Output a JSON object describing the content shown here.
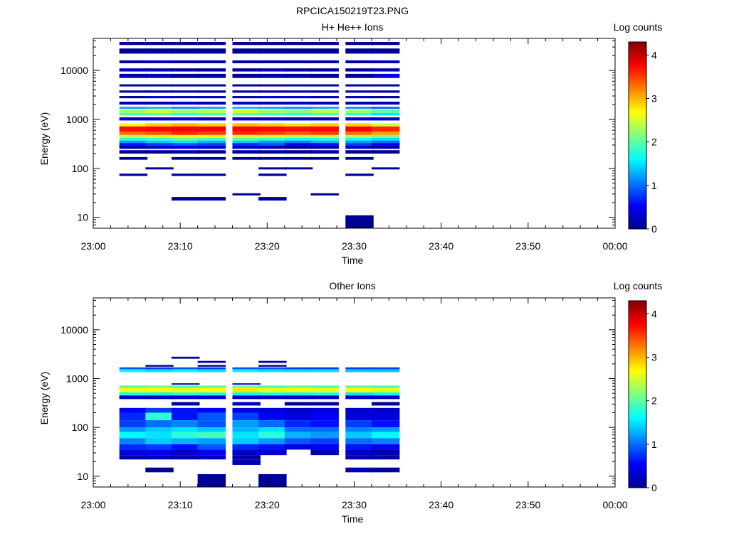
{
  "figure": {
    "title": "RPCICA150219T23.PNG"
  },
  "panels": [
    {
      "id": "top",
      "title": "H+ He++ Ions",
      "colorbar_label": "Log counts"
    },
    {
      "id": "bottom",
      "title": "Other Ions",
      "colorbar_label": "Log counts"
    }
  ],
  "chart_data": [
    {
      "type": "heatmap",
      "title": "H+ He++ Ions",
      "xlabel": "Time",
      "ylabel": "Energy (eV)",
      "x_ticks": [
        "23:00",
        "23:10",
        "23:20",
        "23:30",
        "23:40",
        "23:50",
        "00:00"
      ],
      "x_range": [
        "23:00",
        "00:00"
      ],
      "y_scale": "log",
      "y_range": [
        6,
        45000
      ],
      "y_ticks": [
        10,
        100,
        1000,
        10000
      ],
      "y_tick_labels": [
        "10",
        "100",
        "1000",
        "10000"
      ],
      "colorbar": {
        "label": "Log counts",
        "range": [
          0,
          4.3
        ],
        "ticks": [
          0,
          1,
          2,
          3,
          4
        ],
        "colormap": "jet"
      },
      "time_bins": [
        "23:03",
        "23:06",
        "23:09",
        "23:12",
        "23:16",
        "23:19",
        "23:22",
        "23:25",
        "23:29",
        "23:32"
      ],
      "bin_width_min": 3.2,
      "bands": [
        {
          "lo": 560,
          "hi": 720,
          "values": [
            3.7,
            3.75,
            3.8,
            3.8,
            3.75,
            3.75,
            3.7,
            3.75,
            3.8,
            3.6
          ]
        },
        {
          "lo": 480,
          "hi": 560,
          "values": [
            3.3,
            3.4,
            3.6,
            3.5,
            3.6,
            3.5,
            3.4,
            3.5,
            3.3,
            3.1
          ]
        },
        {
          "lo": 720,
          "hi": 830,
          "values": [
            2.7,
            2.9,
            3.0,
            2.9,
            3.0,
            2.9,
            2.8,
            2.9,
            2.9,
            2.5
          ]
        },
        {
          "lo": 420,
          "hi": 480,
          "values": [
            2.4,
            2.5,
            2.6,
            2.6,
            2.5,
            2.5,
            2.4,
            2.4,
            2.3,
            2.1
          ]
        },
        {
          "lo": 370,
          "hi": 420,
          "values": [
            1.8,
            1.9,
            2.1,
            1.9,
            2.0,
            1.9,
            1.7,
            1.8,
            1.7,
            1.5
          ]
        },
        {
          "lo": 330,
          "hi": 370,
          "values": [
            1.2,
            1.4,
            1.5,
            1.3,
            1.4,
            1.2,
            1.1,
            1.3,
            1.2,
            1.0
          ]
        },
        {
          "lo": 290,
          "hi": 330,
          "values": [
            0.6,
            0.8,
            0.9,
            0.8,
            0.7,
            0.9,
            0.5,
            0.6,
            0.8,
            0.5
          ]
        },
        {
          "lo": 250,
          "hi": 290,
          "values": [
            0.2,
            0.3,
            0.4,
            0.3,
            0.3,
            0.2,
            0.1,
            0.2,
            0.3,
            0.2
          ]
        },
        {
          "lo": 1350,
          "hi": 1600,
          "values": [
            2.3,
            2.5,
            2.3,
            2.4,
            2.5,
            2.3,
            2.2,
            2.4,
            2.3,
            2.0
          ]
        },
        {
          "lo": 1200,
          "hi": 1350,
          "values": [
            1.9,
            2.0,
            1.8,
            1.9,
            2.0,
            1.9,
            1.8,
            1.9,
            1.8,
            1.5
          ]
        },
        {
          "lo": 1650,
          "hi": 1800,
          "values": [
            1.2,
            1.3,
            1.1,
            1.2,
            1.3,
            1.2,
            1.1,
            1.2,
            1.1,
            0.9
          ]
        },
        {
          "lo": 950,
          "hi": 1100,
          "values": [
            0.3,
            0.3,
            0.4,
            0.3,
            0.3,
            0.4,
            0.3,
            0.3,
            0.4,
            0.3
          ]
        },
        {
          "lo": 2000,
          "hi": 2300,
          "values": [
            0.2,
            0.2,
            0.3,
            0.2,
            0.3,
            0.2,
            0.3,
            0.2,
            0.2,
            0.2
          ]
        },
        {
          "lo": 2700,
          "hi": 3000,
          "values": [
            0.1,
            0.3,
            0.2,
            0.2,
            0.2,
            0.3,
            0.3,
            0.2,
            0.2,
            0.1
          ]
        },
        {
          "lo": 3500,
          "hi": 3900,
          "values": [
            0.2,
            0.1,
            0.2,
            0.1,
            0.2,
            0.2,
            0.2,
            0.1,
            0.2,
            0.1
          ]
        },
        {
          "lo": 4700,
          "hi": 5200,
          "values": [
            0.1,
            0.2,
            0.1,
            0.2,
            0.1,
            0.1,
            0.2,
            0.2,
            0.1,
            0.2
          ]
        },
        {
          "lo": 7000,
          "hi": 8500,
          "values": [
            0.2,
            0.3,
            0.1,
            0.2,
            0.1,
            0.2,
            0.2,
            0.1,
            0.1,
            0.4
          ]
        },
        {
          "lo": 9500,
          "hi": 11000,
          "values": [
            0.3,
            0.2,
            0.1,
            0.1,
            0.1,
            0.2,
            0.1,
            0.1,
            0.1,
            0.2
          ]
        },
        {
          "lo": 14000,
          "hi": 16000,
          "values": [
            0.1,
            0.2,
            0.1,
            0.1,
            0.1,
            0.1,
            0.1,
            0.1,
            0.1,
            0.2
          ]
        },
        {
          "lo": 22000,
          "hi": 28000,
          "values": [
            0.1,
            0.1,
            0.1,
            0.1,
            0.1,
            0.1,
            0.1,
            0.1,
            0.1,
            0.1
          ]
        },
        {
          "lo": 33000,
          "hi": 38000,
          "values": [
            0.1,
            0.1,
            0.1,
            0.1,
            0.1,
            0.1,
            0.1,
            0.1,
            0.1,
            0.1
          ]
        },
        {
          "lo": 200,
          "hi": 235,
          "values": [
            0.1,
            0.1,
            0.2,
            0.1,
            0.2,
            0.1,
            0.1,
            0.2,
            0.1,
            0.1
          ]
        },
        {
          "lo": 150,
          "hi": 170,
          "values": [
            0.1,
            null,
            0.1,
            0.1,
            0.1,
            0.1,
            0.1,
            0.1,
            0.1,
            null
          ]
        },
        {
          "lo": 95,
          "hi": 105,
          "values": [
            null,
            0.1,
            null,
            null,
            null,
            0.1,
            0.1,
            null,
            null,
            0.1
          ]
        },
        {
          "lo": 70,
          "hi": 78,
          "values": [
            0.1,
            null,
            0.1,
            0.1,
            null,
            0.1,
            null,
            null,
            0.1,
            null
          ]
        },
        {
          "lo": 28,
          "hi": 31,
          "values": [
            null,
            null,
            null,
            null,
            0.1,
            null,
            null,
            0.1,
            null,
            null
          ]
        },
        {
          "lo": 22,
          "hi": 26,
          "values": [
            null,
            null,
            0.1,
            0.1,
            null,
            0.1,
            null,
            null,
            null,
            null
          ]
        },
        {
          "lo": 6,
          "hi": 11,
          "values": [
            null,
            null,
            null,
            null,
            null,
            null,
            null,
            null,
            0.1,
            null
          ]
        }
      ]
    },
    {
      "type": "heatmap",
      "title": "Other Ions",
      "xlabel": "Time",
      "ylabel": "Energy (eV)",
      "x_ticks": [
        "23:00",
        "23:10",
        "23:20",
        "23:30",
        "23:40",
        "23:50",
        "00:00"
      ],
      "x_range": [
        "23:00",
        "00:00"
      ],
      "y_scale": "log",
      "y_range": [
        6,
        45000
      ],
      "y_ticks": [
        10,
        100,
        1000,
        10000
      ],
      "y_tick_labels": [
        "10",
        "100",
        "1000",
        "10000"
      ],
      "colorbar": {
        "label": "Log counts",
        "range": [
          0,
          4.3
        ],
        "ticks": [
          0,
          1,
          2,
          3,
          4
        ],
        "colormap": "jet"
      },
      "time_bins": [
        "23:03",
        "23:06",
        "23:09",
        "23:12",
        "23:16",
        "23:19",
        "23:22",
        "23:25",
        "23:29",
        "23:32"
      ],
      "bin_width_min": 3.2,
      "bands": [
        {
          "lo": 520,
          "hi": 640,
          "values": [
            2.6,
            2.7,
            2.6,
            2.7,
            2.8,
            2.6,
            2.7,
            2.6,
            2.7,
            2.6
          ]
        },
        {
          "lo": 640,
          "hi": 720,
          "values": [
            2.0,
            2.1,
            1.9,
            2.0,
            2.1,
            1.9,
            2.0,
            1.9,
            2.0,
            1.9
          ]
        },
        {
          "lo": 450,
          "hi": 520,
          "values": [
            1.7,
            1.6,
            1.8,
            1.7,
            1.6,
            1.7,
            1.6,
            1.7,
            1.5,
            1.6
          ]
        },
        {
          "lo": 1350,
          "hi": 1550,
          "values": [
            1.6,
            1.5,
            1.6,
            1.5,
            1.6,
            1.5,
            1.5,
            1.5,
            1.4,
            1.4
          ]
        },
        {
          "lo": 1550,
          "hi": 1700,
          "values": [
            0.9,
            0.8,
            0.9,
            0.8,
            0.9,
            0.9,
            0.8,
            0.8,
            0.8,
            0.8
          ]
        },
        {
          "lo": 380,
          "hi": 450,
          "values": [
            0.3,
            0.3,
            0.4,
            0.4,
            0.3,
            0.3,
            0.3,
            0.3,
            0.3,
            0.3
          ]
        },
        {
          "lo": 200,
          "hi": 250,
          "values": [
            0.5,
            0.8,
            0.6,
            0.5,
            0.4,
            0.4,
            0.3,
            0.4,
            0.3,
            0.3
          ]
        },
        {
          "lo": 140,
          "hi": 200,
          "values": [
            0.7,
            1.8,
            0.6,
            0.9,
            0.8,
            0.5,
            0.4,
            0.5,
            0.4,
            0.4
          ]
        },
        {
          "lo": 100,
          "hi": 140,
          "values": [
            0.8,
            1.0,
            1.1,
            0.9,
            1.2,
            1.0,
            0.7,
            0.6,
            0.8,
            0.6
          ]
        },
        {
          "lo": 80,
          "hi": 100,
          "values": [
            1.2,
            1.4,
            1.5,
            1.4,
            1.3,
            1.5,
            1.0,
            1.0,
            1.1,
            1.2
          ]
        },
        {
          "lo": 60,
          "hi": 80,
          "values": [
            1.6,
            1.5,
            1.8,
            1.9,
            1.5,
            1.8,
            1.3,
            1.2,
            1.4,
            1.6
          ]
        },
        {
          "lo": 45,
          "hi": 60,
          "values": [
            1.1,
            1.4,
            1.3,
            1.2,
            1.4,
            1.2,
            0.9,
            0.8,
            1.0,
            1.1
          ]
        },
        {
          "lo": 35,
          "hi": 45,
          "values": [
            0.7,
            0.8,
            0.6,
            0.9,
            0.7,
            0.6,
            0.4,
            0.5,
            0.6,
            0.5
          ]
        },
        {
          "lo": 27,
          "hi": 35,
          "values": [
            0.4,
            0.5,
            0.3,
            0.5,
            0.3,
            0.3,
            null,
            0.2,
            0.3,
            0.2
          ]
        },
        {
          "lo": 22,
          "hi": 27,
          "values": [
            0.2,
            0.3,
            0.2,
            0.3,
            0.2,
            null,
            null,
            null,
            0.2,
            0.2
          ]
        },
        {
          "lo": 17,
          "hi": 22,
          "values": [
            null,
            null,
            null,
            null,
            0.2,
            null,
            null,
            null,
            null,
            null
          ]
        },
        {
          "lo": 12,
          "hi": 15,
          "values": [
            null,
            0.1,
            null,
            null,
            null,
            null,
            null,
            null,
            0.2,
            0.1
          ]
        },
        {
          "lo": 6,
          "hi": 11,
          "values": [
            null,
            null,
            null,
            0.1,
            null,
            0.1,
            null,
            null,
            null,
            null
          ]
        },
        {
          "lo": 1750,
          "hi": 1900,
          "values": [
            null,
            0.1,
            null,
            0.1,
            null,
            0.1,
            null,
            null,
            null,
            null
          ]
        },
        {
          "lo": 2100,
          "hi": 2300,
          "values": [
            null,
            null,
            null,
            0.1,
            null,
            0.1,
            null,
            null,
            null,
            null
          ]
        },
        {
          "lo": 2550,
          "hi": 2800,
          "values": [
            null,
            null,
            0.1,
            null,
            null,
            null,
            null,
            null,
            null,
            null
          ]
        },
        {
          "lo": 750,
          "hi": 800,
          "values": [
            null,
            null,
            0.2,
            null,
            0.5,
            null,
            null,
            null,
            null,
            null
          ]
        },
        {
          "lo": 280,
          "hi": 330,
          "values": [
            null,
            null,
            0.1,
            null,
            0.2,
            null,
            0.1,
            0.1,
            null,
            0.1
          ]
        }
      ]
    }
  ]
}
